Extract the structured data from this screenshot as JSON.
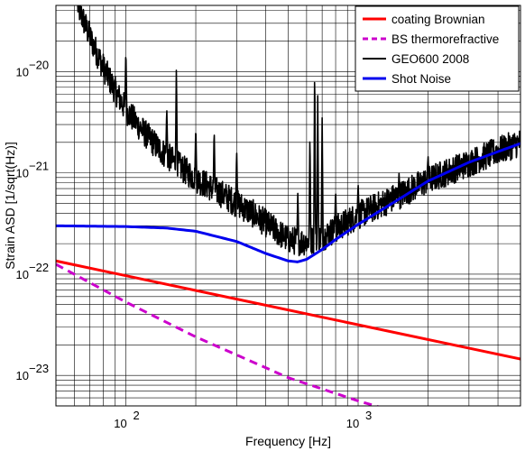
{
  "chart_data": {
    "type": "line",
    "xlabel": "Frequency [Hz]",
    "ylabel": "Strain ASD [1/sqrt(Hz)]",
    "xscale": "log",
    "yscale": "log",
    "xlim": [
      50,
      5000
    ],
    "ylim": [
      5e-24,
      4.5e-20
    ],
    "grid": true,
    "legend_position": "top-right",
    "x_ticks": [
      {
        "value": 100,
        "base": "10",
        "exp": "2"
      },
      {
        "value": 1000,
        "base": "10",
        "exp": "3"
      }
    ],
    "y_ticks": [
      {
        "value": 1e-23,
        "base": "10",
        "exp": "−23"
      },
      {
        "value": 1e-22,
        "base": "10",
        "exp": "−22"
      },
      {
        "value": 1e-21,
        "base": "10",
        "exp": "−21"
      },
      {
        "value": 1e-20,
        "base": "10",
        "exp": "−20"
      }
    ],
    "series": [
      {
        "name": "coating Brownian",
        "color": "#ff0000",
        "style": "solid",
        "x": [
          50,
          5000
        ],
        "y": [
          1.35e-22,
          1.45e-23
        ]
      },
      {
        "name": "BS thermorefractive",
        "color": "#cc00cc",
        "style": "dashed",
        "x": [
          50,
          100,
          200,
          500,
          1000,
          1350
        ],
        "y": [
          1.25e-22,
          5.3e-23,
          2.4e-23,
          9.5e-24,
          5.6e-24,
          4.6e-24
        ]
      },
      {
        "name": "GEO600 2008",
        "color": "#000000",
        "style": "solid",
        "x": [
          62,
          70,
          80,
          90,
          100,
          120,
          140,
          160,
          180,
          200,
          250,
          300,
          350,
          400,
          450,
          500,
          550,
          600,
          700,
          800,
          1000,
          1500,
          2000,
          3000,
          4000,
          5000
        ],
        "y": [
          4.5e-20,
          2.2e-20,
          1.1e-20,
          6.5e-21,
          4.2e-21,
          2.5e-21,
          1.7e-21,
          1.3e-21,
          1.05e-21,
          8.8e-22,
          6.5e-22,
          5e-22,
          4e-22,
          3.2e-22,
          2.6e-22,
          2.2e-22,
          2.1e-22,
          2.1e-22,
          2.3e-22,
          2.8e-22,
          3.8e-22,
          6e-22,
          8.5e-22,
          1.25e-21,
          1.65e-21,
          2e-21
        ],
        "peaks": [
          {
            "x": 100,
            "y": 1.7e-20
          },
          {
            "x": 150,
            "y": 4.5e-21
          },
          {
            "x": 165,
            "y": 1.15e-20
          },
          {
            "x": 200,
            "y": 3e-21
          },
          {
            "x": 240,
            "y": 2.8e-21
          },
          {
            "x": 300,
            "y": 1.7e-21
          },
          {
            "x": 550,
            "y": 6.5e-22
          },
          {
            "x": 620,
            "y": 2.6e-21
          },
          {
            "x": 650,
            "y": 1.3e-20
          },
          {
            "x": 670,
            "y": 6e-21
          },
          {
            "x": 700,
            "y": 3.5e-21
          },
          {
            "x": 800,
            "y": 7e-22
          },
          {
            "x": 1000,
            "y": 8e-22
          },
          {
            "x": 1500,
            "y": 1e-21
          },
          {
            "x": 2000,
            "y": 1.5e-21
          }
        ]
      },
      {
        "name": "Shot Noise",
        "color": "#0000ee",
        "style": "solid",
        "x": [
          50,
          100,
          150,
          200,
          300,
          400,
          500,
          550,
          600,
          700,
          800,
          1000,
          1500,
          2000,
          3000,
          4000,
          5000
        ],
        "y": [
          3e-22,
          2.95e-22,
          2.85e-22,
          2.65e-22,
          2.1e-22,
          1.6e-22,
          1.35e-22,
          1.32e-22,
          1.4e-22,
          1.75e-22,
          2.2e-22,
          3.1e-22,
          5.5e-22,
          8.3e-22,
          1.27e-21,
          1.62e-21,
          1.95e-21
        ]
      }
    ]
  }
}
